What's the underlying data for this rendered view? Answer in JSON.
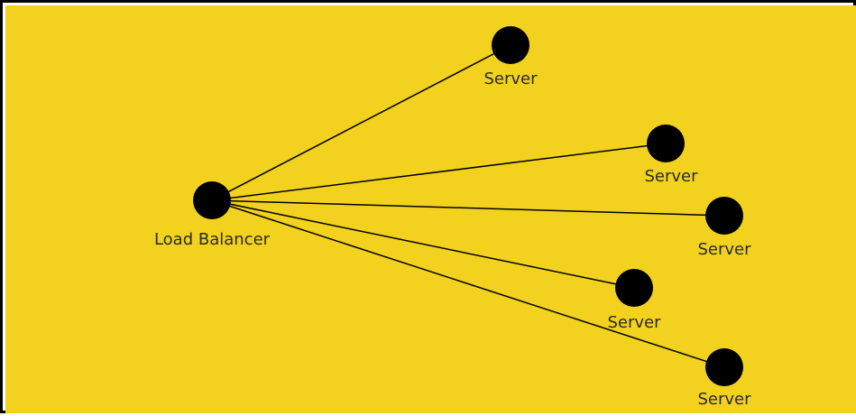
{
  "colors": {
    "background": "#F2D21E",
    "node": "#000000",
    "edge": "#000000",
    "label": "#2A2A2A"
  },
  "nodes": {
    "load_balancer": {
      "label": "Load Balancer"
    },
    "server_1": {
      "label": "Server"
    },
    "server_2": {
      "label": "Server"
    },
    "server_3": {
      "label": "Server"
    },
    "server_4": {
      "label": "Server"
    },
    "server_5": {
      "label": "Server"
    }
  },
  "edges": [
    {
      "from": "load_balancer",
      "to": "server_1"
    },
    {
      "from": "load_balancer",
      "to": "server_2"
    },
    {
      "from": "load_balancer",
      "to": "server_3"
    },
    {
      "from": "load_balancer",
      "to": "server_4"
    },
    {
      "from": "load_balancer",
      "to": "server_5"
    }
  ]
}
